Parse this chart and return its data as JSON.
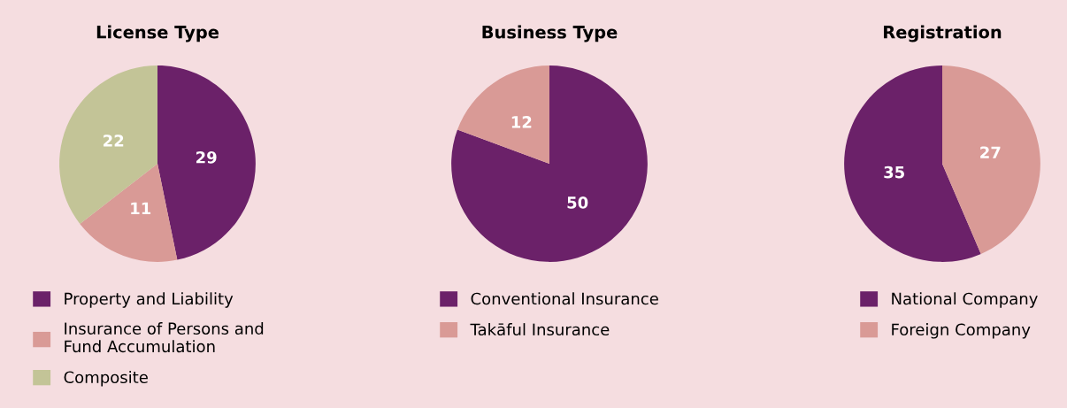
{
  "chart_data": [
    {
      "type": "pie",
      "title": "License Type",
      "categories": [
        "Property and Liability",
        "Insurance of Persons and\nFund Accumulation",
        "Composite"
      ],
      "values": [
        29,
        11,
        22
      ],
      "colors": [
        "#6b2169",
        "#d99a96",
        "#c3c497"
      ],
      "data_labels": true,
      "legend": "bottom"
    },
    {
      "type": "pie",
      "title": "Business Type",
      "categories": [
        "Conventional Insurance",
        "Takāful Insurance"
      ],
      "values": [
        50,
        12
      ],
      "colors": [
        "#6b2169",
        "#d99a96"
      ],
      "data_labels": true,
      "legend": "bottom"
    },
    {
      "type": "pie",
      "title": "Registration",
      "categories": [
        "National Company",
        "Foreign Company"
      ],
      "values": [
        35,
        27
      ],
      "colors": [
        "#6b2169",
        "#d99a96"
      ],
      "data_labels": true,
      "legend": "bottom"
    }
  ]
}
